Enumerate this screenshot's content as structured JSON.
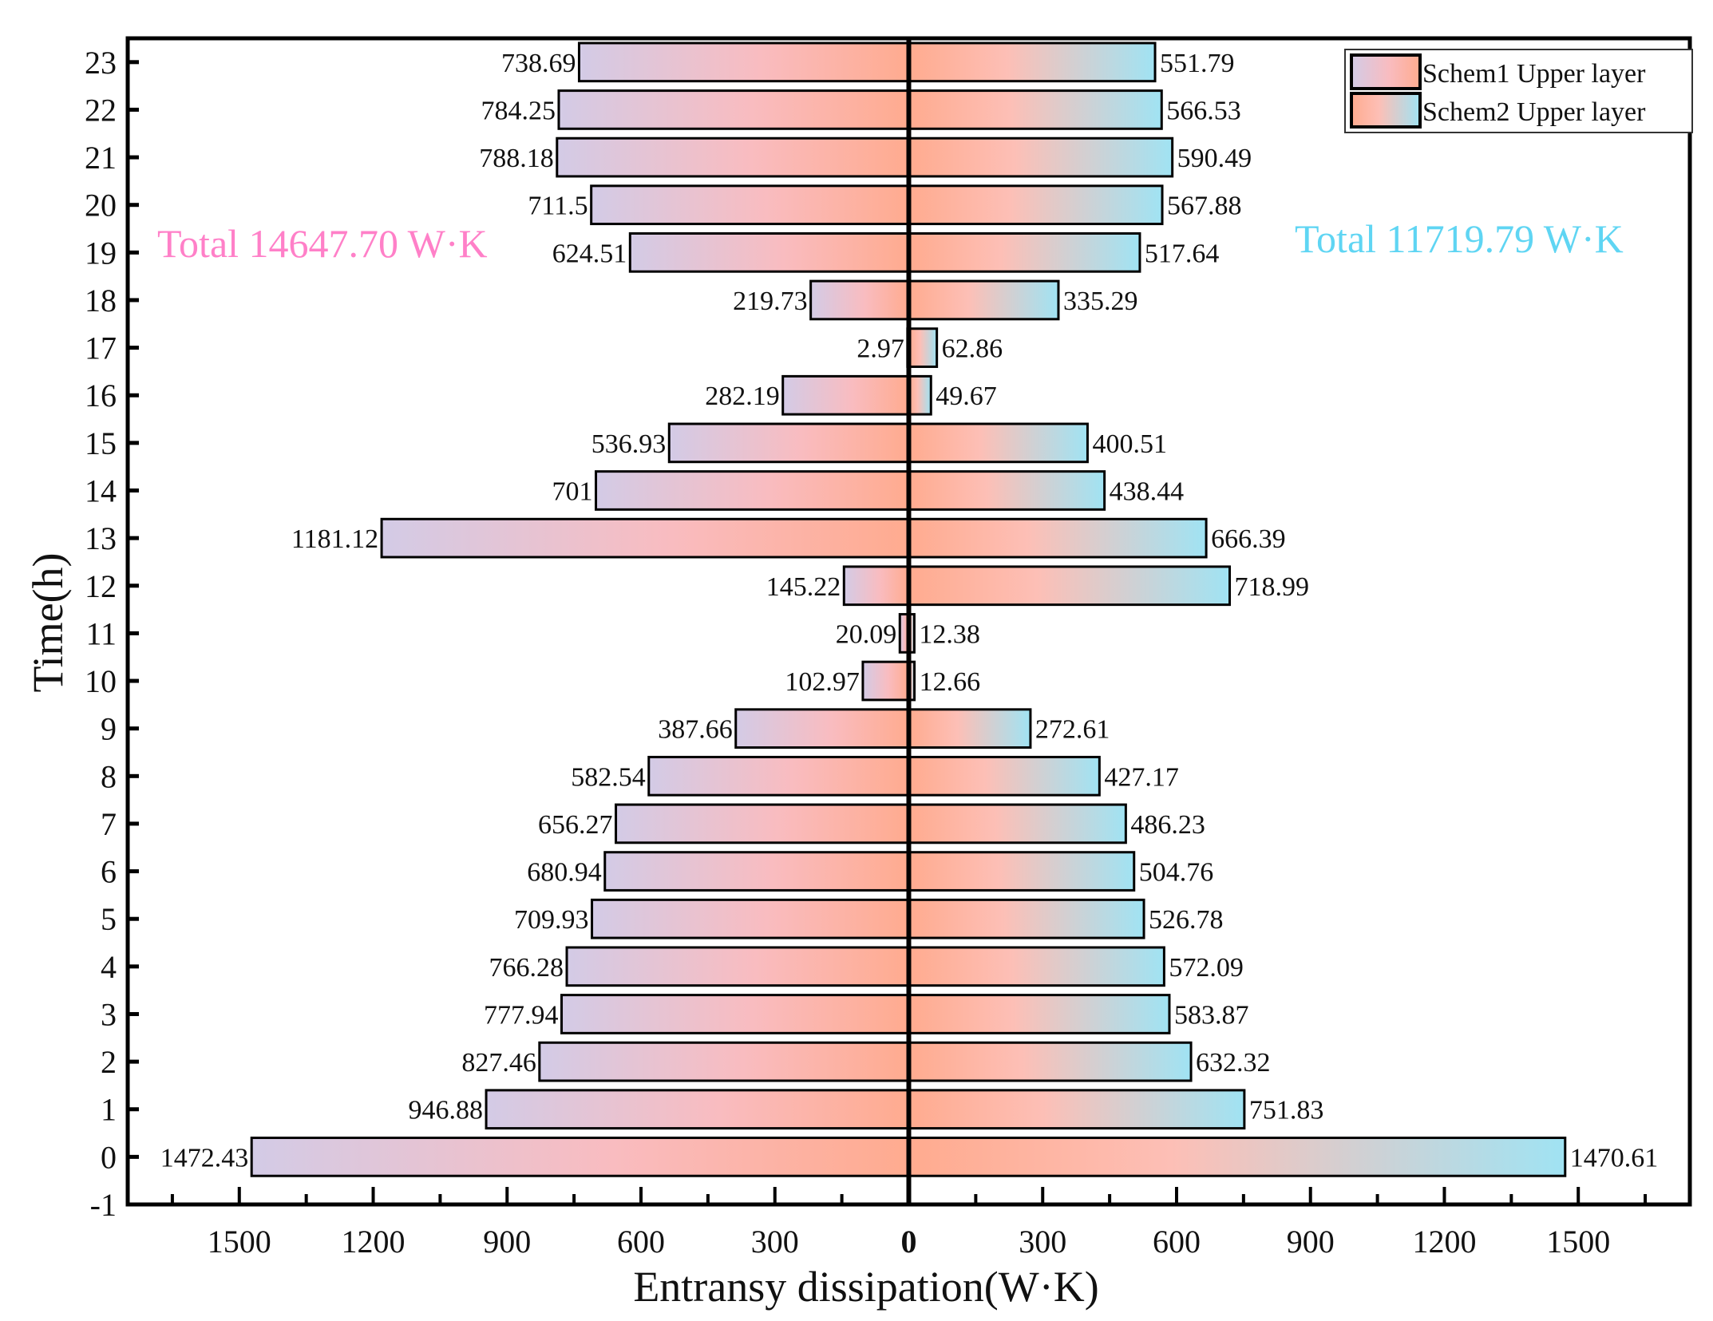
{
  "chart_data": {
    "type": "bar",
    "orientation": "horizontal-diverging",
    "xlabel": "Entransy dissipation(W·K)",
    "ylabel": "Time(h)",
    "xlim": [
      -1750,
      1750
    ],
    "ylim": [
      -1,
      23.5
    ],
    "x_ticks": [
      -1500,
      -1200,
      -900,
      -600,
      -300,
      0,
      300,
      600,
      900,
      1200,
      1500
    ],
    "x_tick_labels": [
      "1500",
      "1200",
      "900",
      "600",
      "300",
      "0",
      "300",
      "600",
      "900",
      "1200",
      "1500"
    ],
    "y_ticks": [
      -1,
      0,
      1,
      2,
      3,
      4,
      5,
      6,
      7,
      8,
      9,
      10,
      11,
      12,
      13,
      14,
      15,
      16,
      17,
      18,
      19,
      20,
      21,
      22,
      23
    ],
    "y_tick_labels": [
      "-1",
      "0",
      "1",
      "2",
      "3",
      "4",
      "5",
      "6",
      "7",
      "8",
      "9",
      "10",
      "11",
      "12",
      "13",
      "14",
      "15",
      "16",
      "17",
      "18",
      "19",
      "20",
      "21",
      "22",
      "23"
    ],
    "categories": [
      0,
      1,
      2,
      3,
      4,
      5,
      6,
      7,
      8,
      9,
      10,
      11,
      12,
      13,
      14,
      15,
      16,
      17,
      18,
      19,
      20,
      21,
      22,
      23
    ],
    "series": [
      {
        "name": "Schem1 Upper layer",
        "side": "left",
        "values": [
          1472.43,
          946.88,
          827.46,
          777.94,
          766.28,
          709.93,
          680.94,
          656.27,
          582.54,
          387.66,
          102.97,
          20.09,
          145.22,
          1181.12,
          701,
          536.93,
          282.19,
          2.97,
          219.73,
          624.51,
          711.5,
          788.18,
          784.25,
          738.69
        ],
        "labels": [
          "1472.43",
          "946.88",
          "827.46",
          "777.94",
          "766.28",
          "709.93",
          "680.94",
          "656.27",
          "582.54",
          "387.66",
          "102.97",
          "20.09",
          "145.22",
          "1181.12",
          "701",
          "536.93",
          "282.19",
          "2.97",
          "219.73",
          "624.51",
          "711.5",
          "788.18",
          "784.25",
          "738.69"
        ],
        "gradient": [
          "#d3cbe6",
          "#f9bcc0",
          "#ffab8f"
        ]
      },
      {
        "name": "Schem2 Upper layer",
        "side": "right",
        "values": [
          1470.61,
          751.83,
          632.32,
          583.87,
          572.09,
          526.78,
          504.76,
          486.23,
          427.17,
          272.61,
          12.66,
          12.38,
          718.99,
          666.39,
          438.44,
          400.51,
          49.67,
          62.86,
          335.29,
          517.64,
          567.88,
          590.49,
          566.53,
          551.79
        ],
        "labels": [
          "1470.61",
          "751.83",
          "632.32",
          "583.87",
          "572.09",
          "526.78",
          "504.76",
          "486.23",
          "427.17",
          "272.61",
          "12.66",
          "12.38",
          "718.99",
          "666.39",
          "438.44",
          "400.51",
          "49.67",
          "62.86",
          "335.29",
          "517.64",
          "567.88",
          "590.49",
          "566.53",
          "551.79"
        ],
        "gradient": [
          "#ffab8f",
          "#fdbfb6",
          "#a0e3f3"
        ]
      }
    ],
    "annotations": [
      {
        "text": "Total  14647.70 W·K",
        "color": "#ff80c8",
        "side": "left"
      },
      {
        "text": "Total  11719.79 W·K",
        "color": "#5fd5f3",
        "side": "right"
      }
    ],
    "legend": {
      "placement": "top-right",
      "entries": [
        "Schem1 Upper layer",
        "Schem2 Upper layer"
      ]
    },
    "grid": false
  }
}
